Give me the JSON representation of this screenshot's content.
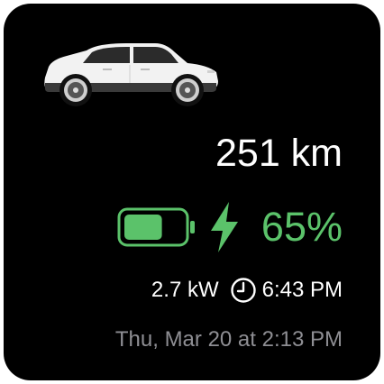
{
  "vehicle": {
    "image": "white-suv-side-view"
  },
  "range": {
    "text": "251 km"
  },
  "charging": {
    "battery_level": 0.65,
    "battery_icon": "battery-icon",
    "charging_icon": "lightning-bolt-icon",
    "percent_text": "65%",
    "accent_color": "#5bc26a"
  },
  "stats": {
    "power": "2.7 kW",
    "clock_icon": "clock-icon",
    "completion_time": "6:43 PM"
  },
  "updated": {
    "text": "Thu, Mar 20 at 2:13 PM",
    "color": "#8e8e93"
  }
}
